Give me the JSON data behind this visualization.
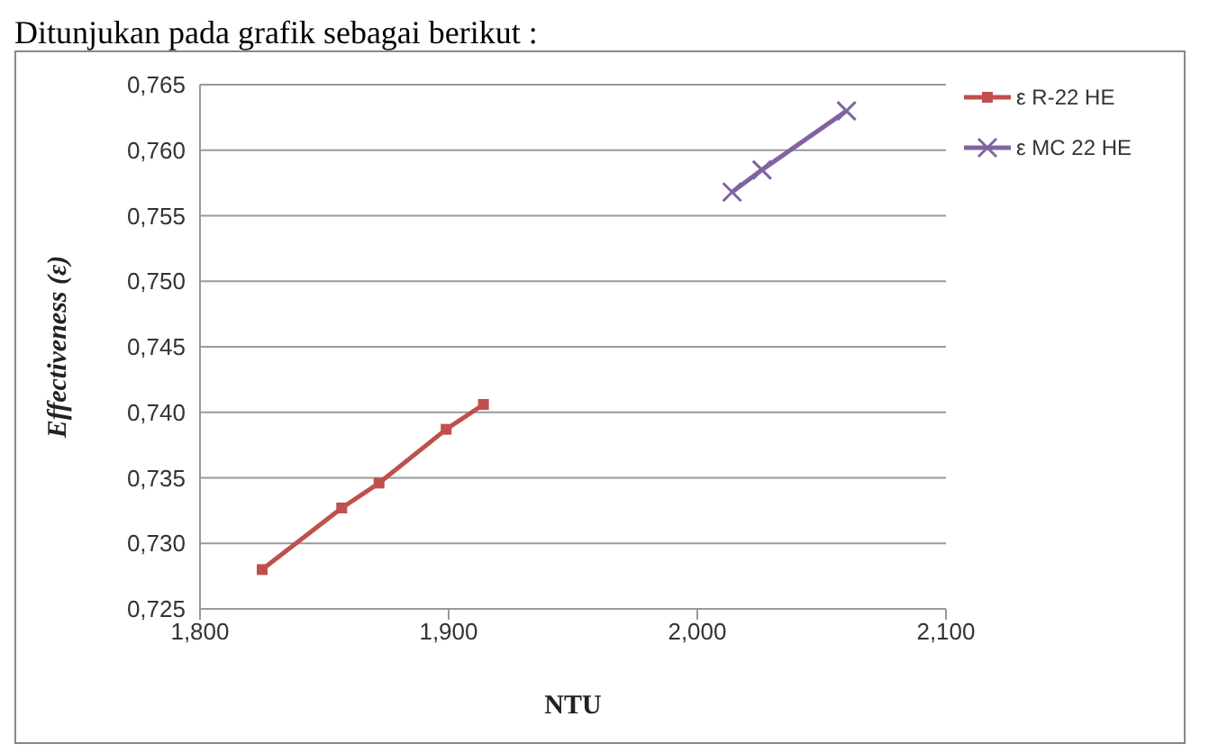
{
  "chart_data": {
    "type": "line",
    "xlabel": "NTU",
    "ylabel": "Effectiveness (ε)",
    "annotations": [
      "Ditunjukan pada grafik sebagai berikut :"
    ],
    "xlim": [
      1.8,
      2.1
    ],
    "xticks": [
      {
        "value": 1.8,
        "label": "1,800"
      },
      {
        "value": 1.9,
        "label": "1,900"
      },
      {
        "value": 2.0,
        "label": "2,000"
      },
      {
        "value": 2.1,
        "label": "2,100"
      }
    ],
    "ylim": [
      0.725,
      0.765
    ],
    "yticks": [
      {
        "value": 0.725,
        "label": "0,725"
      },
      {
        "value": 0.73,
        "label": "0,730"
      },
      {
        "value": 0.735,
        "label": "0,735"
      },
      {
        "value": 0.74,
        "label": "0,740"
      },
      {
        "value": 0.745,
        "label": "0,745"
      },
      {
        "value": 0.75,
        "label": "0,750"
      },
      {
        "value": 0.755,
        "label": "0,755"
      },
      {
        "value": 0.76,
        "label": "0,760"
      },
      {
        "value": 0.765,
        "label": "0,765"
      }
    ],
    "grid": "y",
    "legend": "right",
    "line_style": "solid",
    "series": [
      {
        "name": "ε R-22 HE",
        "color": "#c0504d",
        "marker": "square",
        "x": [
          1.825,
          1.857,
          1.872,
          1.899,
          1.914
        ],
        "values": [
          0.728,
          0.7327,
          0.7346,
          0.7387,
          0.7406
        ]
      },
      {
        "name": "ε MC 22 HE",
        "color": "#8064a2",
        "marker": "cross",
        "x": [
          2.014,
          2.026,
          2.06
        ],
        "values": [
          0.7568,
          0.7585,
          0.763
        ]
      }
    ]
  }
}
